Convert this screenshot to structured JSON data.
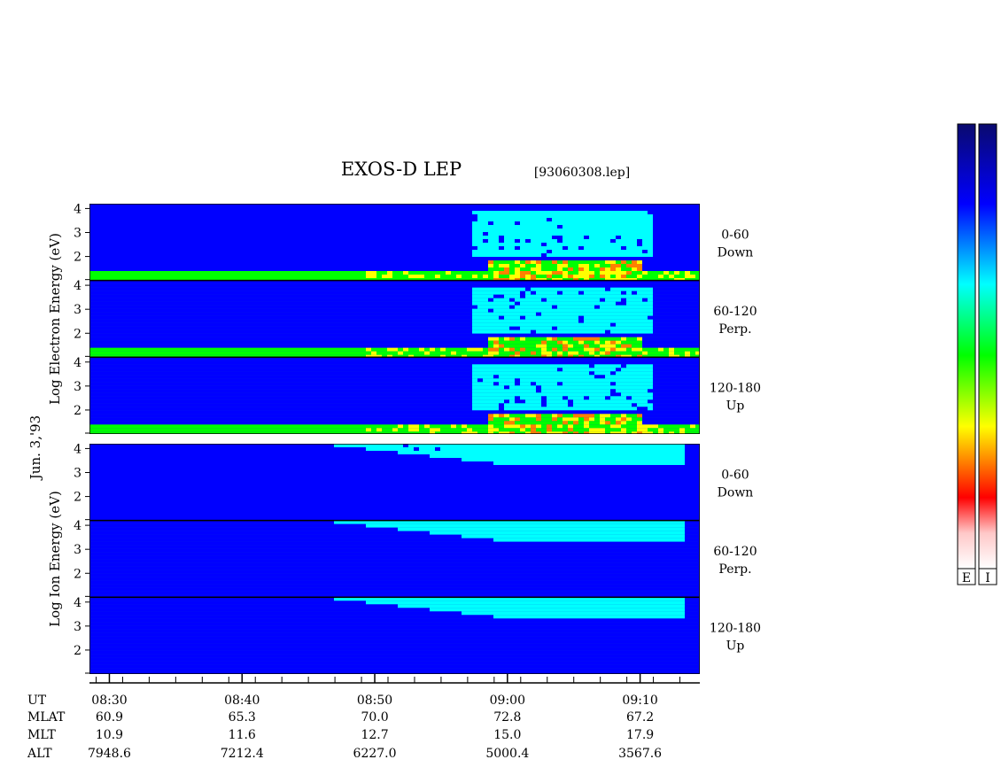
{
  "header": {
    "title": "EXOS-D LEP",
    "file_label": "[93060308.lep]"
  },
  "date_label": "Jun. 3,'93",
  "colors": {
    "colorbar_gradient": [
      "#0a0a6e",
      "#0000ff",
      "#00ffff",
      "#00ff00",
      "#ffff00",
      "#ff8000",
      "#ff0000",
      "#ffc8c8",
      "#ffffff"
    ],
    "panel_background": "#0d3fd6"
  },
  "chart_data": {
    "type": "heatmap",
    "title": "EXOS-D LEP",
    "x_axis": {
      "ticks": [
        "08:30",
        "08:40",
        "08:50",
        "09:00",
        "09:10"
      ],
      "xlim": [
        "08:28:30",
        "09:14:30"
      ]
    },
    "groups": [
      {
        "name": "electron",
        "ylabel": "Log Electron Energy (eV)",
        "ylim": [
          1,
          4.2
        ],
        "yticks": [
          "2",
          "3",
          "4"
        ],
        "panels": [
          {
            "label_line1": "0-60",
            "label_line2": "Down"
          },
          {
            "label_line1": "60-120",
            "label_line2": "Perp."
          },
          {
            "label_line1": "120-180",
            "label_line2": "Up"
          }
        ]
      },
      {
        "name": "ion",
        "ylabel": "Log Ion Energy (eV)",
        "ylim": [
          1,
          4.2
        ],
        "yticks": [
          "2",
          "3",
          "4"
        ],
        "panels": [
          {
            "label_line1": "0-60",
            "label_line2": "Down"
          },
          {
            "label_line1": "60-120",
            "label_line2": "Perp."
          },
          {
            "label_line1": "120-180",
            "label_line2": "Up"
          }
        ]
      }
    ],
    "ephemeris": {
      "rows": [
        {
          "name": "UT",
          "values": [
            "08:30",
            "08:40",
            "08:50",
            "09:00",
            "09:10"
          ]
        },
        {
          "name": "MLAT",
          "values": [
            "60.9",
            "65.3",
            "70.0",
            "72.8",
            "67.2"
          ]
        },
        {
          "name": "MLT",
          "values": [
            "10.9",
            "11.6",
            "12.7",
            "15.0",
            "17.9"
          ]
        },
        {
          "name": "ALT",
          "values": [
            "7948.6",
            "7212.4",
            "6227.0",
            "5000.4",
            "3567.6"
          ]
        }
      ]
    },
    "colorbars": [
      {
        "label": "E"
      },
      {
        "label": "I"
      }
    ]
  }
}
